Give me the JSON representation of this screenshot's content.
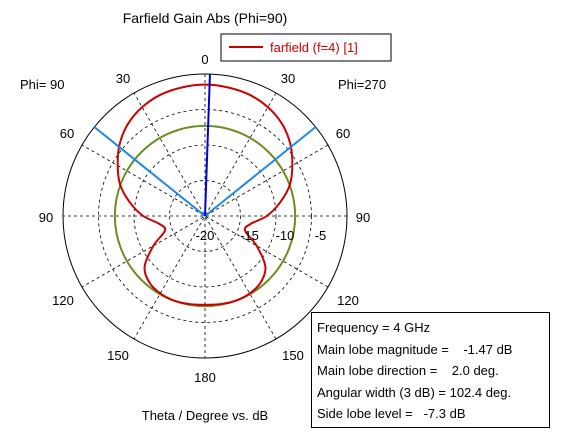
{
  "chart_data": {
    "type": "polar",
    "title": "Farfield Gain Abs (Phi=90)",
    "xlabel": "Theta / Degree vs. dB",
    "side_labels": {
      "left": "Phi= 90",
      "right": "Phi=270"
    },
    "angle_ticks": {
      "top": "0",
      "upper_left": "30",
      "upper_right": "30",
      "mid_left": "60",
      "mid_right": "60",
      "left": "90",
      "right": "90",
      "lower_left": "120",
      "lower_right": "120",
      "bottom_left": "150",
      "bottom_right": "150",
      "bottom": "180"
    },
    "radial_ticks": [
      "-20",
      "-15",
      "-10",
      "-5"
    ],
    "radial_range_db": [
      -20,
      0
    ],
    "legend": {
      "label": "farfield (f=4) [1]",
      "position": "top-right"
    },
    "series": [
      {
        "name": "farfield (f=4) [1]",
        "color": "#cc0000",
        "theta_deg": [
          0,
          10,
          20,
          30,
          40,
          50,
          60,
          70,
          80,
          90,
          100,
          110,
          120,
          130,
          140,
          150,
          160,
          170,
          180
        ],
        "gain_db": [
          -1.5,
          -1.6,
          -1.8,
          -2.3,
          -3.1,
          -4.3,
          -5.8,
          -7.3,
          -9.3,
          -11.3,
          -13.5,
          -14.0,
          -11.6,
          -8.9,
          -7.8,
          -7.4,
          -7.3,
          -7.4,
          -7.5
        ]
      }
    ],
    "main_lobe_direction_deg": 2.0,
    "beamwidth_lines_deg": [
      -51.2,
      51.2
    ],
    "beamwidth_color": "#1e88e5",
    "main_lobe_marker_color": "#0000cc",
    "reference_circle_db": -7.3,
    "reference_circle_color": "#6b8e23",
    "grid": true
  },
  "info": {
    "frequency": "Frequency = 4 GHz",
    "magnitude": "Main lobe magnitude =    -1.47 dB",
    "direction": "Main lobe direction =    2.0 deg.",
    "width": "Angular width (3 dB) = 102.4 deg.",
    "sidelobe": "Side lobe level =   -7.3 dB"
  }
}
